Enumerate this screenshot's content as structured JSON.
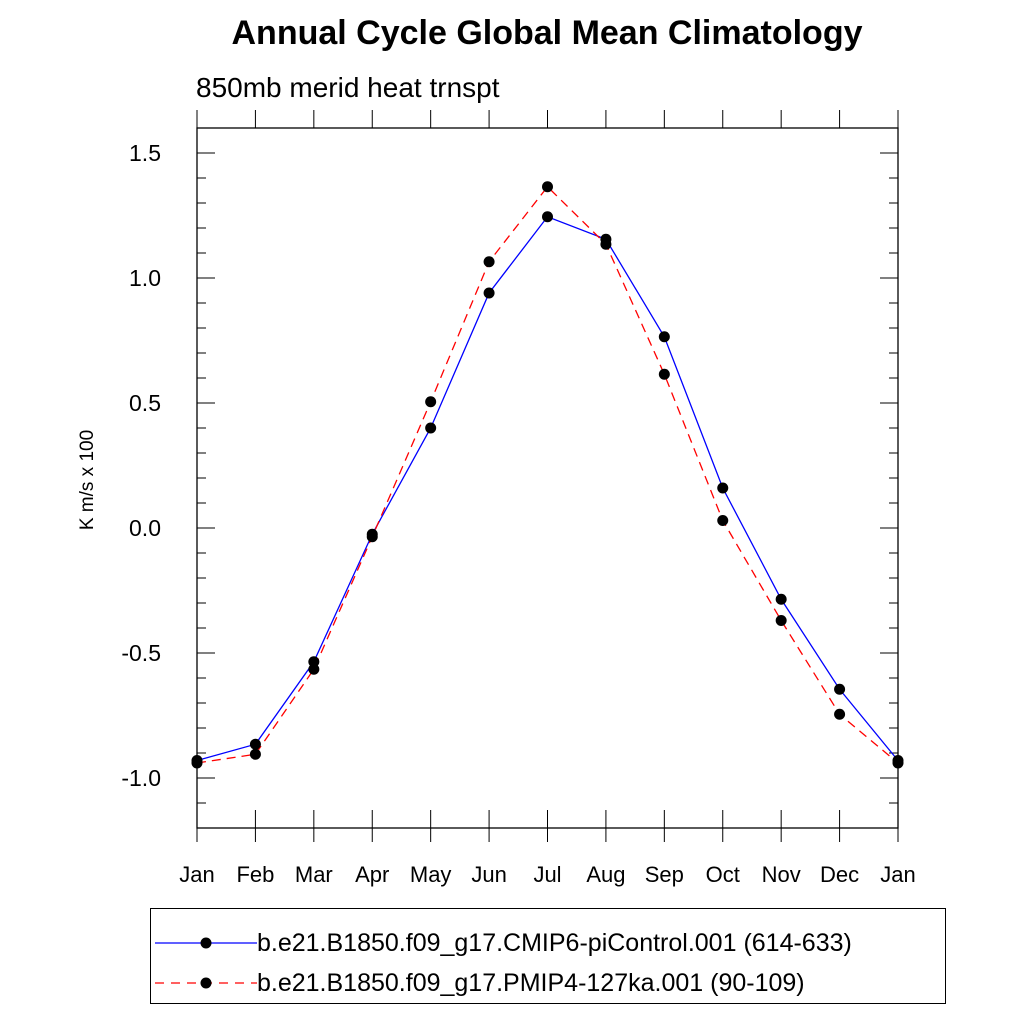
{
  "chart_data": {
    "type": "line",
    "title": "Annual Cycle Global Mean Climatology",
    "subtitle": "850mb merid heat trnspt",
    "ylabel": "K m/s x 100",
    "xlabel": "",
    "categories": [
      "Jan",
      "Feb",
      "Mar",
      "Apr",
      "May",
      "Jun",
      "Jul",
      "Aug",
      "Sep",
      "Oct",
      "Nov",
      "Dec",
      "Jan"
    ],
    "ylim": [
      -1.2,
      1.6
    ],
    "yticks": [
      -1.0,
      -0.5,
      0.0,
      0.5,
      1.0,
      1.5
    ],
    "ytick_labels": [
      "-1.0",
      "-0.5",
      "0.0",
      "0.5",
      "1.0",
      "1.5"
    ],
    "minor_y_step": 0.1,
    "series": [
      {
        "name": "b.e21.B1850.f09_g17.CMIP6-piControl.001 (614-633)",
        "color": "#0000ff",
        "dash": "solid",
        "marker": "circle",
        "values": [
          -0.93,
          -0.865,
          -0.535,
          -0.025,
          0.4,
          0.94,
          1.245,
          1.155,
          0.765,
          0.16,
          -0.285,
          -0.645,
          -0.93
        ]
      },
      {
        "name": "b.e21.B1850.f09_g17.PMIP4-127ka.001 (90-109)",
        "color": "#ff0000",
        "dash": "dashed",
        "marker": "circle",
        "values": [
          -0.94,
          -0.905,
          -0.565,
          -0.035,
          0.505,
          1.065,
          1.365,
          1.135,
          0.615,
          0.03,
          -0.37,
          -0.745,
          -0.94
        ]
      }
    ],
    "legend_position": "bottom"
  }
}
